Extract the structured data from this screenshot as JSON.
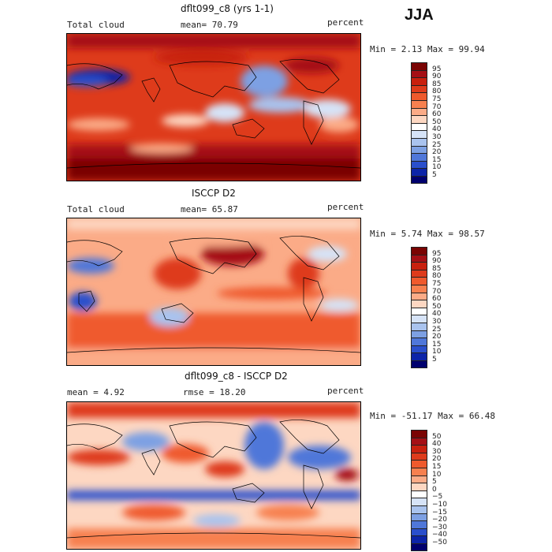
{
  "season": "JJA",
  "panels": [
    {
      "title": "dflt099_c8 (yrs 1-1)",
      "left_label": "Total cloud",
      "center_label": "mean=  70.79",
      "right_label": "percent",
      "range_label": "Min =    2.13 Max =  99.94",
      "colorbar": {
        "labels": [
          "95",
          "90",
          "85",
          "80",
          "75",
          "70",
          "60",
          "50",
          "40",
          "30",
          "25",
          "20",
          "15",
          "10",
          "5"
        ],
        "colors": [
          "#7a0403",
          "#a50f15",
          "#c8200e",
          "#de3b1b",
          "#ef5a2d",
          "#f7804f",
          "#fbab87",
          "#fdd7c2",
          "#ffffff",
          "#d6e3f7",
          "#a9c3ee",
          "#7da0e3",
          "#4f77d9",
          "#2a4fcc",
          "#0c24a8",
          "#00006e"
        ]
      }
    },
    {
      "title": "ISCCP D2",
      "left_label": "Total cloud",
      "center_label": "mean=  65.87",
      "right_label": "percent",
      "range_label": "Min =    5.74 Max =  98.57",
      "colorbar": {
        "labels": [
          "95",
          "90",
          "85",
          "80",
          "75",
          "70",
          "60",
          "50",
          "40",
          "30",
          "25",
          "20",
          "15",
          "10",
          "5"
        ],
        "colors": [
          "#7a0403",
          "#a50f15",
          "#c8200e",
          "#de3b1b",
          "#ef5a2d",
          "#f7804f",
          "#fbab87",
          "#fdd7c2",
          "#ffffff",
          "#d6e3f7",
          "#a9c3ee",
          "#7da0e3",
          "#4f77d9",
          "#2a4fcc",
          "#0c24a8",
          "#00006e"
        ]
      }
    },
    {
      "title": "dflt099_c8 - ISCCP D2",
      "left_label": "mean =    4.92",
      "center_label": "rmse =   18.20",
      "right_label": "percent",
      "range_label": "Min = -51.17 Max =  66.48",
      "colorbar": {
        "labels": [
          "50",
          "40",
          "30",
          "20",
          "15",
          "10",
          "5",
          "0",
          "−5",
          "−10",
          "−15",
          "−20",
          "−30",
          "−40",
          "−50"
        ],
        "colors": [
          "#7a0403",
          "#a50f15",
          "#c8200e",
          "#de3b1b",
          "#ef5a2d",
          "#f7804f",
          "#fbab87",
          "#fdd7c2",
          "#ffffff",
          "#d6e3f7",
          "#a9c3ee",
          "#7da0e3",
          "#4f77d9",
          "#2a4fcc",
          "#0c24a8",
          "#00006e"
        ]
      }
    }
  ]
}
